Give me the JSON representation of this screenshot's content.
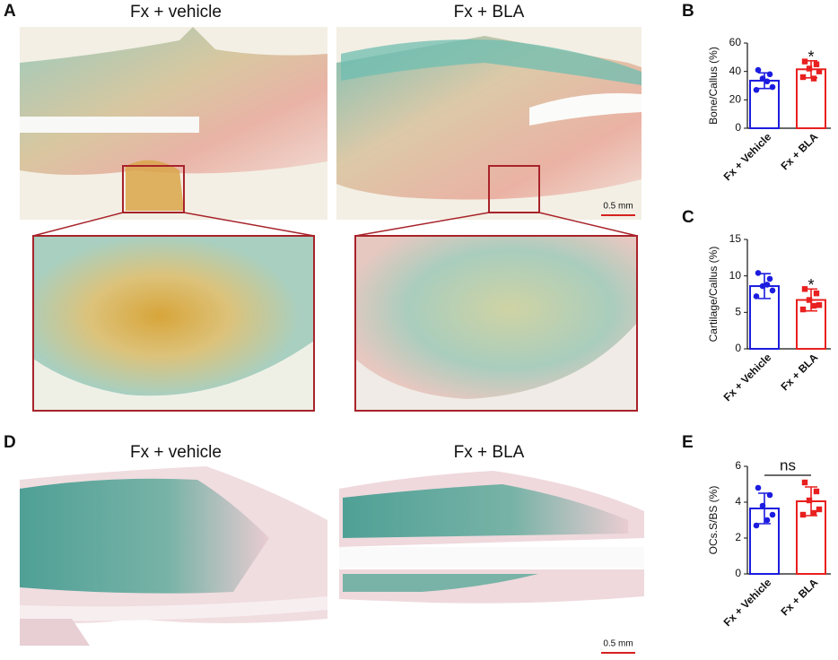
{
  "panels": {
    "A": {
      "label": "A",
      "left_title": "Fx + vehicle",
      "right_title": "Fx + BLA",
      "scale_bar": "0.5 mm"
    },
    "D": {
      "label": "D",
      "left_title": "Fx + vehicle",
      "right_title": "Fx + BLA",
      "scale_bar": "0.5 mm"
    }
  },
  "chart_data": [
    {
      "type": "bar",
      "panel_label": "B",
      "ylabel": "Bone/Callus (%)",
      "categories": [
        "Fx + Vehicle",
        "Fx + BLA"
      ],
      "colors": [
        "#1c1ce0",
        "#e8201f"
      ],
      "values": [
        33.5,
        41.5
      ],
      "errors": [
        5.5,
        6
      ],
      "points": [
        [
          41,
          38,
          35,
          29,
          27,
          33
        ],
        [
          47,
          45,
          42,
          40,
          36,
          35
        ]
      ],
      "annotation": "*",
      "annotation_bracket": false,
      "ylim": [
        0,
        60
      ],
      "yticks": [
        0,
        20,
        40,
        60
      ]
    },
    {
      "type": "bar",
      "panel_label": "C",
      "ylabel": "Cartilage/Callus (%)",
      "categories": [
        "Fx + Vehicle",
        "Fx + BLA"
      ],
      "colors": [
        "#1c1ce0",
        "#e8201f"
      ],
      "values": [
        8.6,
        6.7
      ],
      "errors": [
        1.7,
        1.5
      ],
      "points": [
        [
          10.4,
          9.6,
          8.6,
          8.0,
          7.2,
          8.8
        ],
        [
          8.2,
          7.6,
          6.7,
          6.0,
          5.4,
          5.9
        ]
      ],
      "annotation": "*",
      "annotation_bracket": false,
      "ylim": [
        0,
        15
      ],
      "yticks": [
        0,
        5,
        10,
        15
      ]
    },
    {
      "type": "bar",
      "panel_label": "E",
      "ylabel": "OCs.S/BS (%)",
      "categories": [
        "Fx + Vehicle",
        "Fx + BLA"
      ],
      "colors": [
        "#1c1ce0",
        "#e8201f"
      ],
      "values": [
        3.65,
        4.05
      ],
      "errors": [
        0.85,
        0.8
      ],
      "points": [
        [
          4.8,
          4.4,
          3.8,
          3.3,
          2.7,
          3.0
        ],
        [
          5.1,
          4.6,
          4.1,
          3.6,
          3.3,
          3.4
        ]
      ],
      "annotation": "ns",
      "annotation_bracket": true,
      "ylim": [
        0,
        6
      ],
      "yticks": [
        0,
        2,
        4,
        6
      ]
    }
  ]
}
